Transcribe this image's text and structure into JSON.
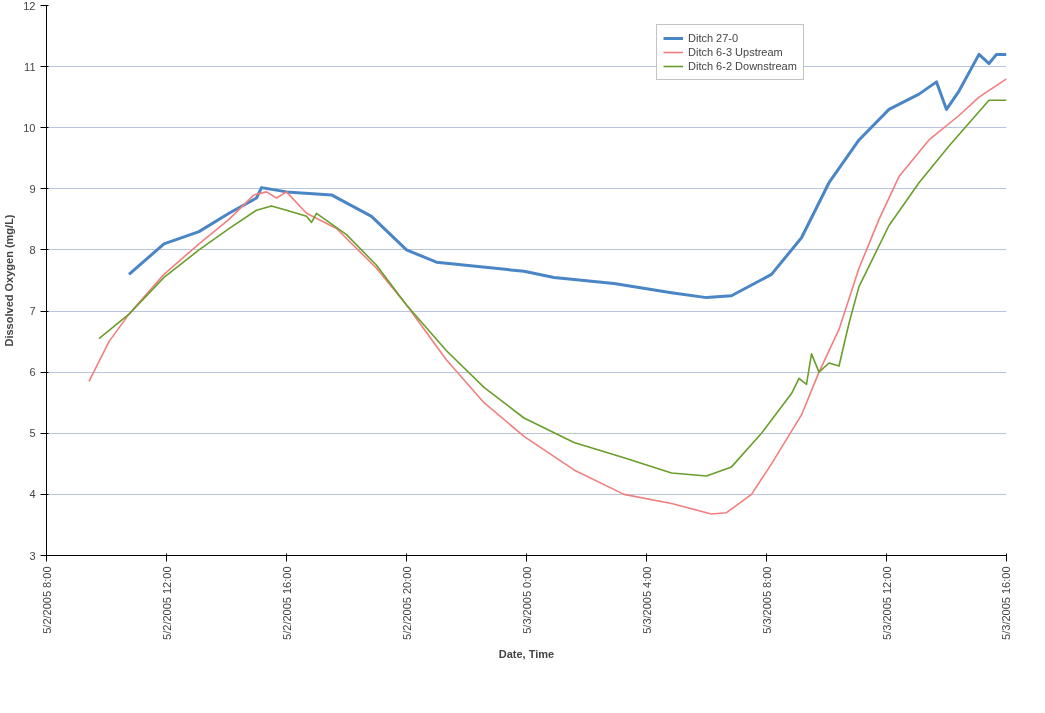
{
  "chart_data": {
    "type": "line",
    "xlabel": "Date, Time",
    "ylabel": "Dissolved Oxygen (mg/L)",
    "xlim": [
      "2005-05-02T08:00",
      "2005-05-03T16:00"
    ],
    "xticks": [
      {
        "value": "2005-05-02T08:00",
        "label": "5/2/2005 8:00"
      },
      {
        "value": "2005-05-02T12:00",
        "label": "5/2/2005 12:00"
      },
      {
        "value": "2005-05-02T16:00",
        "label": "5/2/2005 16:00"
      },
      {
        "value": "2005-05-02T20:00",
        "label": "5/2/2005 20:00"
      },
      {
        "value": "2005-05-03T00:00",
        "label": "5/3/2005 0:00"
      },
      {
        "value": "2005-05-03T04:00",
        "label": "5/3/2005 4:00"
      },
      {
        "value": "2005-05-03T08:00",
        "label": "5/3/2005 8:00"
      },
      {
        "value": "2005-05-03T12:00",
        "label": "5/3/2005 12:00"
      },
      {
        "value": "2005-05-03T16:00",
        "label": "5/3/2005 16:00"
      }
    ],
    "ylim": [
      3,
      12
    ],
    "yticks": [
      3,
      4,
      5,
      6,
      7,
      8,
      9,
      10,
      11,
      12
    ],
    "grid": "y",
    "legend": "top right",
    "marker": "none",
    "line_style": "solid",
    "series": [
      {
        "name": "Ditch 27-0",
        "color": "#4a86c5",
        "x": [
          "2005-05-02T10:45",
          "2005-05-02T11:55",
          "2005-05-02T13:05",
          "2005-05-02T14:05",
          "2005-05-02T15:00",
          "2005-05-02T15:10",
          "2005-05-02T16:00",
          "2005-05-02T17:30",
          "2005-05-02T18:50",
          "2005-05-02T20:00",
          "2005-05-02T21:00",
          "2005-05-02T23:55",
          "2005-05-03T00:55",
          "2005-05-03T02:55",
          "2005-05-03T04:50",
          "2005-05-03T06:00",
          "2005-05-03T06:50",
          "2005-05-03T08:10",
          "2005-05-03T09:10",
          "2005-05-03T10:05",
          "2005-05-03T11:05",
          "2005-05-03T12:05",
          "2005-05-03T13:05",
          "2005-05-03T13:40",
          "2005-05-03T14:00",
          "2005-05-03T14:25",
          "2005-05-03T15:05",
          "2005-05-03T15:25",
          "2005-05-03T15:40",
          "2005-05-03T16:00"
        ],
        "values": [
          7.6,
          8.1,
          8.3,
          8.6,
          8.85,
          9.02,
          8.95,
          8.9,
          8.55,
          8.0,
          7.8,
          7.65,
          7.55,
          7.45,
          7.3,
          7.22,
          7.25,
          7.6,
          8.2,
          9.1,
          9.8,
          10.3,
          10.55,
          10.75,
          10.3,
          10.6,
          11.2,
          11.05,
          11.2,
          11.2
        ]
      },
      {
        "name": "Ditch 6-3 Upstream",
        "color": "#f07f7f",
        "x": [
          "2005-05-02T09:25",
          "2005-05-02T10:05",
          "2005-05-02T10:45",
          "2005-05-02T11:55",
          "2005-05-02T13:05",
          "2005-05-02T14:05",
          "2005-05-02T14:55",
          "2005-05-02T15:20",
          "2005-05-02T15:40",
          "2005-05-02T16:00",
          "2005-05-02T16:40",
          "2005-05-02T17:40",
          "2005-05-02T19:00",
          "2005-05-02T20:00",
          "2005-05-02T21:20",
          "2005-05-02T22:35",
          "2005-05-02T23:55",
          "2005-05-03T01:35",
          "2005-05-03T03:15",
          "2005-05-03T04:50",
          "2005-05-03T06:10",
          "2005-05-03T06:40",
          "2005-05-03T07:30",
          "2005-05-03T08:10",
          "2005-05-03T09:10",
          "2005-05-03T09:45",
          "2005-05-03T10:25",
          "2005-05-03T11:05",
          "2005-05-03T11:25",
          "2005-05-03T11:45",
          "2005-05-03T12:25",
          "2005-05-03T13:25",
          "2005-05-03T14:25",
          "2005-05-03T15:05",
          "2005-05-03T16:00"
        ],
        "values": [
          5.85,
          6.5,
          6.95,
          7.6,
          8.1,
          8.5,
          8.9,
          8.95,
          8.85,
          8.95,
          8.6,
          8.35,
          7.7,
          7.1,
          6.2,
          5.5,
          4.95,
          4.4,
          4.0,
          3.85,
          3.68,
          3.7,
          4.0,
          4.5,
          5.3,
          6.0,
          6.7,
          7.7,
          8.1,
          8.5,
          9.2,
          9.8,
          10.2,
          10.5,
          10.8
        ]
      },
      {
        "name": "Ditch 6-2 Downstream",
        "color": "#6a9e2a",
        "x": [
          "2005-05-02T09:45",
          "2005-05-02T10:45",
          "2005-05-02T11:55",
          "2005-05-02T13:05",
          "2005-05-02T14:05",
          "2005-05-02T15:00",
          "2005-05-02T15:30",
          "2005-05-02T16:00",
          "2005-05-02T16:40",
          "2005-05-02T16:50",
          "2005-05-02T17:00",
          "2005-05-02T18:00",
          "2005-05-02T19:00",
          "2005-05-02T20:00",
          "2005-05-02T21:20",
          "2005-05-02T22:35",
          "2005-05-02T23:55",
          "2005-05-03T01:35",
          "2005-05-03T03:15",
          "2005-05-03T04:50",
          "2005-05-03T06:00",
          "2005-05-03T06:50",
          "2005-05-03T07:50",
          "2005-05-03T08:50",
          "2005-05-03T09:05",
          "2005-05-03T09:20",
          "2005-05-03T09:30",
          "2005-05-03T09:45",
          "2005-05-03T10:05",
          "2005-05-03T10:25",
          "2005-05-03T10:45",
          "2005-05-03T11:05",
          "2005-05-03T12:05",
          "2005-05-03T13:05",
          "2005-05-03T14:05",
          "2005-05-03T15:25",
          "2005-05-03T16:00"
        ],
        "values": [
          6.55,
          6.95,
          7.55,
          8.0,
          8.35,
          8.65,
          8.72,
          8.65,
          8.55,
          8.45,
          8.6,
          8.25,
          7.75,
          7.1,
          6.35,
          5.75,
          5.25,
          4.85,
          4.6,
          4.35,
          4.3,
          4.45,
          5.0,
          5.65,
          5.9,
          5.8,
          6.3,
          6.0,
          6.15,
          6.1,
          6.8,
          7.4,
          8.4,
          9.1,
          9.7,
          10.45,
          10.45
        ]
      }
    ]
  }
}
